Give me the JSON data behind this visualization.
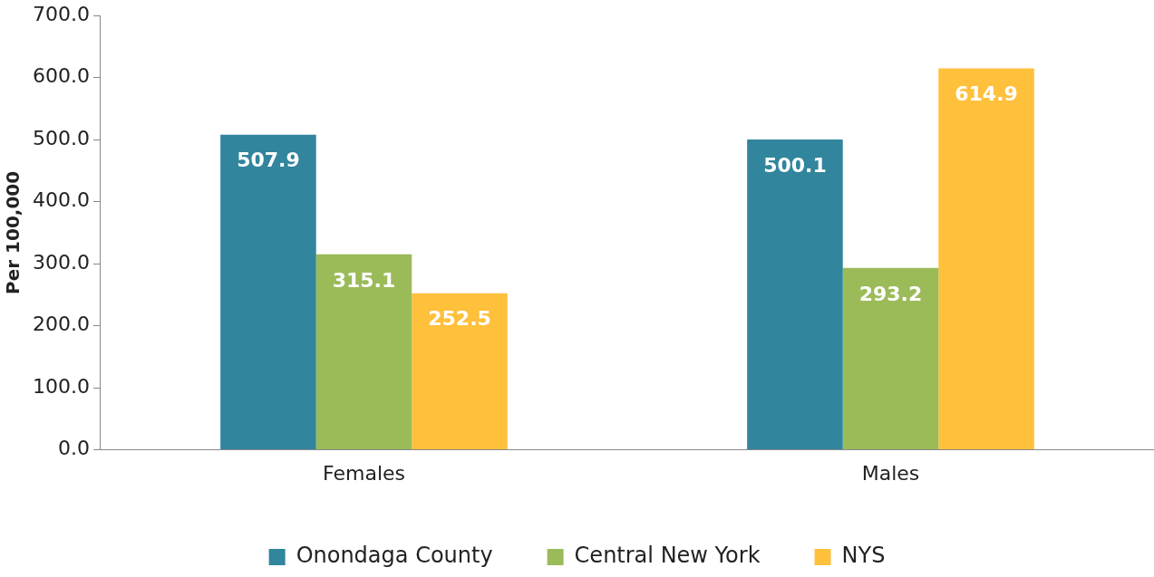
{
  "chart_data": {
    "type": "bar",
    "ylabel": "Per 100,000",
    "categories": [
      "Females",
      "Males"
    ],
    "series": [
      {
        "name": "Onondaga County",
        "color": "#31859c",
        "values": [
          507.9,
          500.1
        ]
      },
      {
        "name": "Central New York",
        "color": "#9bbb59",
        "values": [
          315.1,
          293.2
        ]
      },
      {
        "name": "NYS",
        "color": "#ffc03c",
        "values": [
          252.5,
          614.9
        ]
      }
    ],
    "ylim": [
      0,
      700
    ],
    "yticks": [
      {
        "value": 0,
        "label": "0.0"
      },
      {
        "value": 100,
        "label": "100.0"
      },
      {
        "value": 200,
        "label": "200.0"
      },
      {
        "value": 300,
        "label": "300.0"
      },
      {
        "value": 400,
        "label": "400.0"
      },
      {
        "value": 500,
        "label": "500.0"
      },
      {
        "value": 600,
        "label": "600.0"
      },
      {
        "value": 700,
        "label": "700.0"
      }
    ],
    "grid": false,
    "legend": "bottom",
    "data_labels": true
  }
}
